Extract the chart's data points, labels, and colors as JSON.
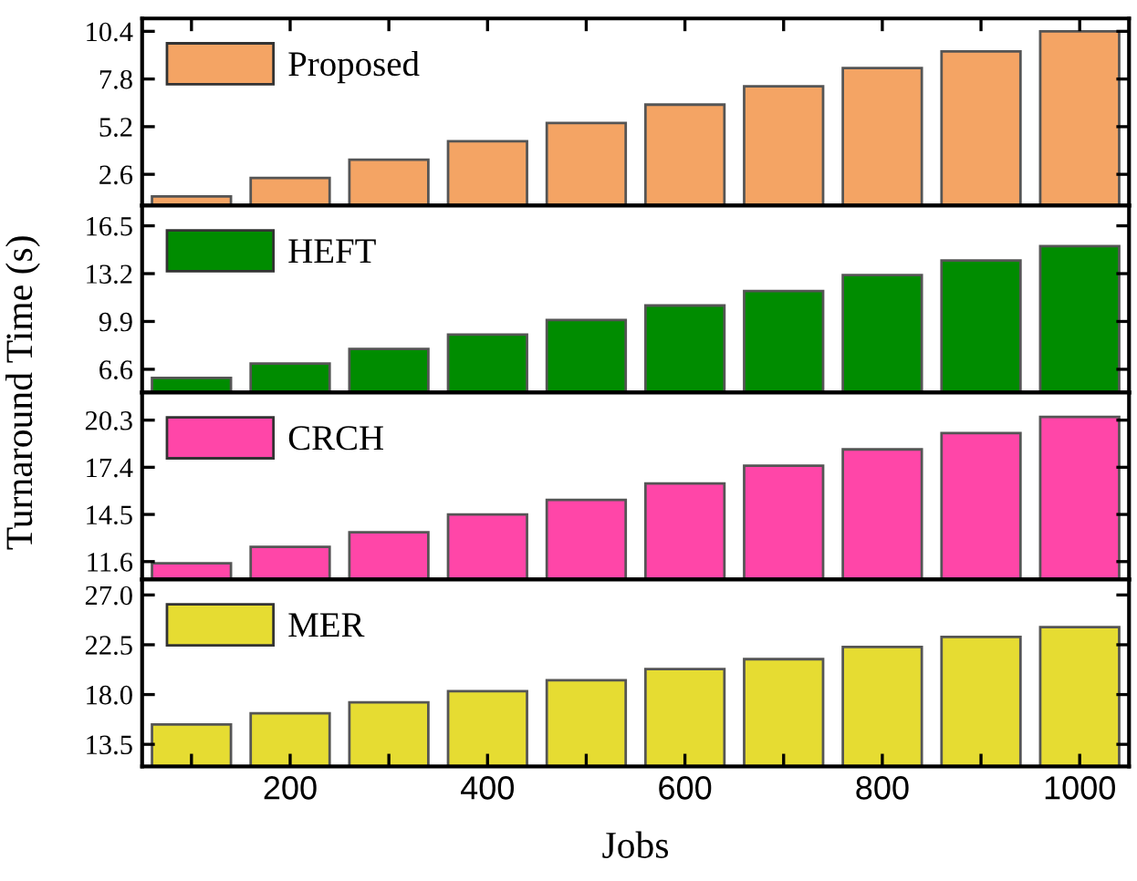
{
  "chart_data": [
    {
      "type": "bar",
      "ylabel": "Turnaround Time (s)",
      "x": [
        100,
        200,
        300,
        400,
        500,
        600,
        700,
        800,
        900,
        1000
      ],
      "series": [
        {
          "name": "Proposed",
          "color": "#f4a464",
          "values": [
            1.4,
            2.4,
            3.4,
            4.4,
            5.4,
            6.4,
            7.4,
            8.4,
            9.3,
            10.4
          ]
        }
      ],
      "xlim": [
        50,
        1050
      ],
      "ylim": [
        0.9,
        11.1
      ],
      "yticks": [
        2.6,
        5.2,
        7.8,
        10.4
      ],
      "xticks": [
        {
          "value": 100,
          "label": null
        },
        200,
        {
          "value": 300,
          "label": null
        },
        400,
        {
          "value": 500,
          "label": null
        },
        600,
        {
          "value": 700,
          "label": null
        },
        800,
        {
          "value": 900,
          "label": null
        },
        1000
      ],
      "tick_labels": "y",
      "legend": "top left",
      "grid": false
    },
    {
      "type": "bar",
      "x": [
        100,
        200,
        300,
        400,
        500,
        600,
        700,
        800,
        900,
        1000
      ],
      "series": [
        {
          "name": "HEFT",
          "color": "#008c00",
          "values": [
            6.0,
            7.0,
            8.0,
            9.0,
            10.0,
            11.0,
            12.0,
            13.1,
            14.1,
            15.1
          ]
        }
      ],
      "xlim": [
        50,
        1050
      ],
      "ylim": [
        5.0,
        17.9
      ],
      "yticks": [
        6.6,
        9.9,
        13.2,
        16.5
      ],
      "tick_labels": "y",
      "legend": "top left",
      "grid": false
    },
    {
      "type": "bar",
      "x": [
        100,
        200,
        300,
        400,
        500,
        600,
        700,
        800,
        900,
        1000
      ],
      "series": [
        {
          "name": "CRCH",
          "color": "#ff46a8",
          "values": [
            11.5,
            12.5,
            13.4,
            14.5,
            15.4,
            16.4,
            17.5,
            18.5,
            19.5,
            20.5
          ]
        }
      ],
      "xlim": [
        50,
        1050
      ],
      "ylim": [
        10.5,
        22.0
      ],
      "yticks": [
        11.6,
        14.5,
        17.4,
        20.3
      ],
      "tick_labels": "y",
      "legend": "top left",
      "grid": false
    },
    {
      "type": "bar",
      "xlabel": "Jobs",
      "x": [
        100,
        200,
        300,
        400,
        500,
        600,
        700,
        800,
        900,
        1000
      ],
      "series": [
        {
          "name": "MER",
          "color": "#e6dc32",
          "values": [
            15.3,
            16.3,
            17.3,
            18.3,
            19.3,
            20.3,
            21.2,
            22.3,
            23.2,
            24.1
          ]
        }
      ],
      "xlim": [
        50,
        1050
      ],
      "ylim": [
        11.5,
        28.4
      ],
      "yticks": [
        13.5,
        {
          "value": 18.0,
          "label": "18.0"
        },
        22.5,
        {
          "value": 27.0,
          "label": "27.0"
        }
      ],
      "xticks": [
        {
          "value": 100,
          "label": null
        },
        200,
        {
          "value": 300,
          "label": null
        },
        400,
        {
          "value": 500,
          "label": null
        },
        600,
        {
          "value": 700,
          "label": null
        },
        800,
        {
          "value": 900,
          "label": null
        },
        1000
      ],
      "legend": "top left",
      "grid": false
    }
  ]
}
